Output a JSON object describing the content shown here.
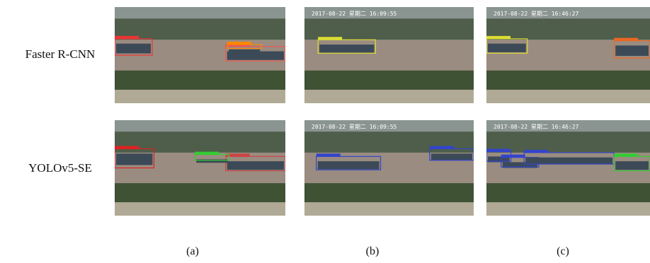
{
  "row_labels": [
    "Faster R-CNN",
    "YOLOv5-SE"
  ],
  "column_labels": [
    "(a)",
    "(b)",
    "(c)"
  ],
  "timestamps": [
    "2017-08-22 星期二 16:09:55",
    "2017-08-22 星期二 16:46:27"
  ]
}
